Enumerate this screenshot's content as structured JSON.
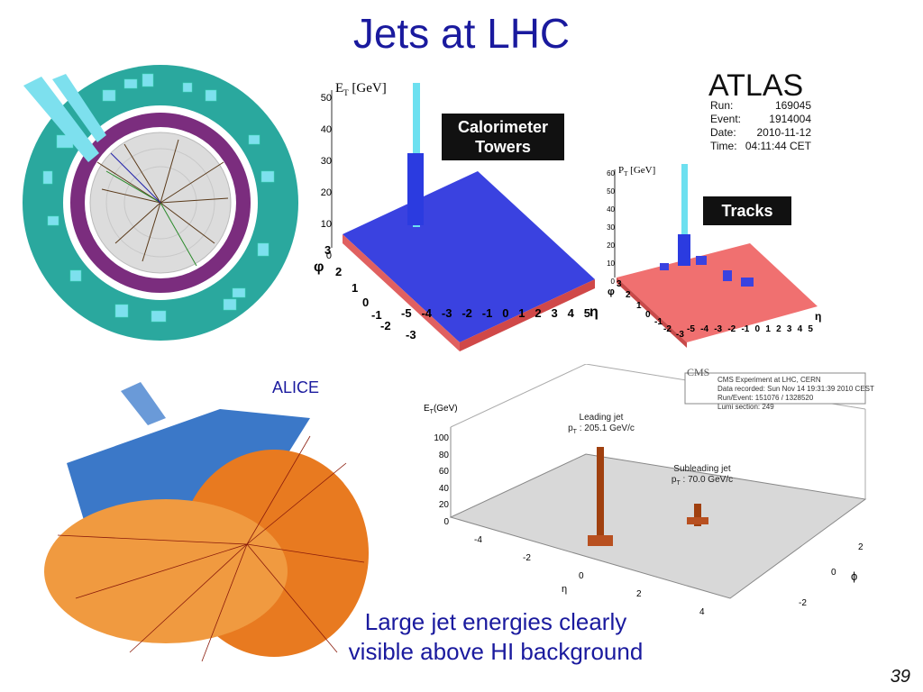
{
  "slide": {
    "title": "Jets at LHC",
    "page_number": "39",
    "caption_line1": "Large jet energies clearly",
    "caption_line2": "visible above HI background"
  },
  "atlas": {
    "logo": "ATLAS",
    "info": [
      {
        "key": "Run:",
        "value": "169045"
      },
      {
        "key": "Event:",
        "value": "1914004"
      },
      {
        "key": "Date:",
        "value": "2010-11-12"
      },
      {
        "key": "Time:",
        "value": "04:11:44 CET"
      }
    ],
    "calo_label_line1": "Calorimeter",
    "calo_label_line2": "Towers",
    "tracks_label": "Tracks",
    "calo_plot": {
      "z_axis_label": "E",
      "z_axis_sub": "T",
      "z_axis_unit": "[GeV]",
      "z_ticks": [
        "50",
        "40",
        "30",
        "20",
        "10",
        "0"
      ],
      "phi_label": "φ",
      "phi_ticks": [
        "3",
        "2",
        "1",
        "0",
        "-1",
        "-2",
        "-3"
      ],
      "eta_label": "η",
      "eta_ticks": [
        "-5",
        "-4",
        "-3",
        "-2",
        "-1",
        "0",
        "1",
        "2",
        "3",
        "4",
        "5"
      ]
    },
    "track_plot": {
      "z_axis_label": "P",
      "z_axis_sub": "T",
      "z_axis_unit": "[GeV]",
      "z_ticks": [
        "60",
        "50",
        "40",
        "30",
        "20",
        "10",
        "0"
      ],
      "phi_label": "φ",
      "phi_ticks": [
        "3",
        "2",
        "1",
        "0",
        "-1",
        "-2",
        "-3"
      ],
      "eta_label": "η",
      "eta_ticks": [
        "-5",
        "-4",
        "-3",
        "-2",
        "-1",
        "0",
        "1",
        "2",
        "3",
        "4",
        "5"
      ]
    },
    "colors": {
      "teal": "#2aa89e",
      "purple": "#7b2d7e",
      "cyan": "#7de0ee",
      "blue": "#2b3be0",
      "red": "#e06060"
    }
  },
  "alice": {
    "label": "ALICE",
    "colors": {
      "blue": "#3b78c8",
      "orange": "#e87a20"
    }
  },
  "cms": {
    "info_line1": "CMS Experiment at LHC, CERN",
    "info_line2": "Data recorded: Sun Nov 14 19:31:39 2010 CEST",
    "info_line3": "Run/Event: 151076 / 1328520",
    "info_line4": "Lumi section: 249",
    "logo": "CMS",
    "z_axis_label": "E",
    "z_axis_sub": "T",
    "z_axis_unit": "(GeV)",
    "z_ticks": [
      "100",
      "80",
      "60",
      "40",
      "20",
      "0"
    ],
    "eta_label": "η",
    "eta_ticks": [
      "-4",
      "-2",
      "0",
      "2",
      "4"
    ],
    "phi_label": "ϕ",
    "phi_ticks": [
      "2",
      "0",
      "-2"
    ],
    "leading_jet_line1": "Leading jet",
    "leading_jet_line2": "p",
    "leading_jet_sub": "T",
    "leading_jet_value": " : 205.1 GeV/c",
    "subleading_jet_line1": "Subleading jet",
    "subleading_jet_line2": "p",
    "subleading_jet_sub": "T",
    "subleading_jet_value": " : 70.0 GeV/c",
    "colors": {
      "jet": "#a0400f",
      "grid": "#888888"
    }
  }
}
